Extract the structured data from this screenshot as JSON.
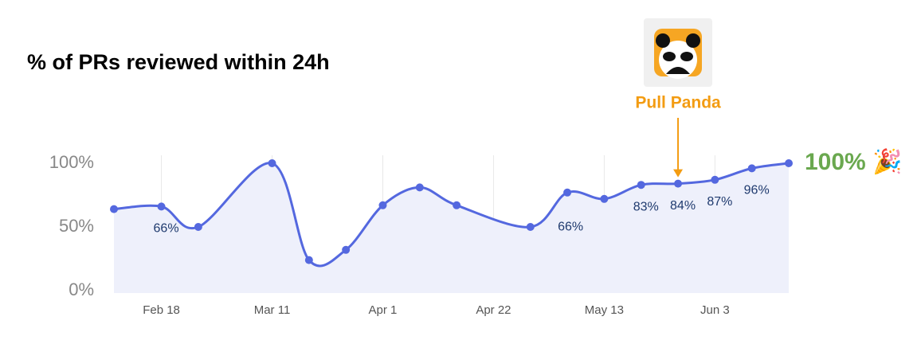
{
  "chart_data": {
    "type": "line",
    "title": "% of PRs reviewed within 24h",
    "x": [
      40,
      49,
      56,
      70,
      77,
      84,
      91,
      98,
      105,
      119,
      126,
      133,
      140,
      147,
      154,
      161,
      168
    ],
    "series": [
      {
        "name": "% of PRs reviewed within 24h",
        "color": "#5468df",
        "values": [
          64,
          66,
          50,
          100,
          24,
          32,
          67,
          81,
          67,
          50,
          77,
          72,
          83,
          84,
          87,
          96,
          100
        ],
        "value_labels": [
          null,
          "66%",
          null,
          null,
          null,
          null,
          null,
          null,
          null,
          null,
          null,
          null,
          "83%",
          "84%",
          "87%",
          "96%",
          "100% 🎉"
        ]
      }
    ],
    "highlight_color": "#6aa84f",
    "xlim": [
      40,
      168
    ],
    "xticks": [
      {
        "value": 49,
        "label": "Feb 18"
      },
      {
        "value": 70,
        "label": "Mar 11"
      },
      {
        "value": 91,
        "label": "Apr 1"
      },
      {
        "value": 112,
        "label": "Apr 22"
      },
      {
        "value": 133,
        "label": "May 13"
      },
      {
        "value": 154,
        "label": "Jun 3"
      }
    ],
    "ylim": [
      0,
      100
    ],
    "yticks": [
      {
        "value": 0,
        "label": "0%"
      },
      {
        "value": 50,
        "label": "50%"
      },
      {
        "value": 100,
        "label": "100%"
      }
    ],
    "grid": true,
    "annotations": [
      {
        "text": "66%",
        "x": 126,
        "y": 56,
        "color": "#1f3a6e"
      },
      {
        "text": "Pull Panda",
        "x": 147,
        "y": 84,
        "color": "#f39c12",
        "arrow": true
      }
    ]
  }
}
